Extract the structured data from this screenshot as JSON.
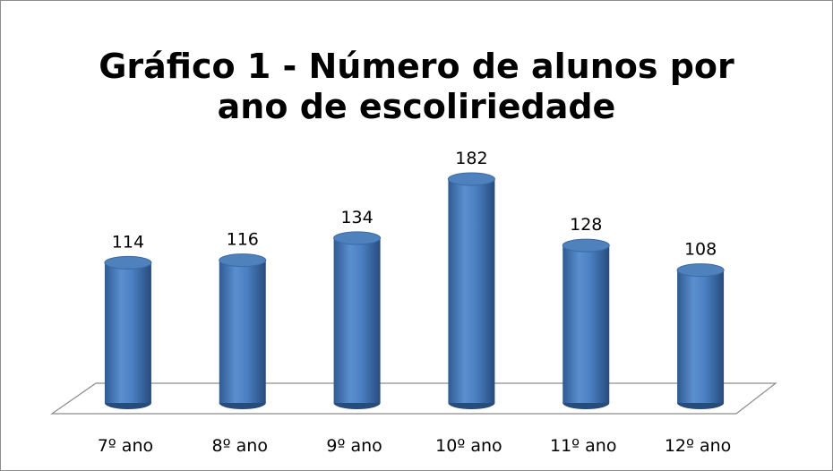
{
  "chart_data": {
    "type": "bar",
    "title": [
      "Gráfico 1 - Número de alunos por",
      "ano de escoliriedade"
    ],
    "categories": [
      "7º ano",
      "8º ano",
      "9º ano",
      "10º ano",
      "11º ano",
      "12º ano"
    ],
    "values": [
      114,
      116,
      134,
      182,
      128,
      108
    ],
    "color": "#4f81bd"
  }
}
